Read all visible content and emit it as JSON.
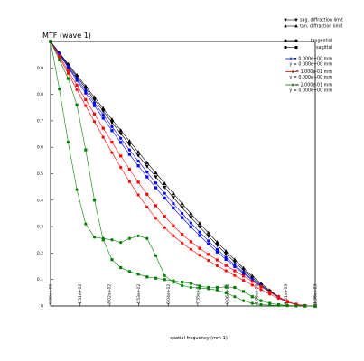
{
  "chart_data": {
    "type": "line",
    "title": "MTF (wave 1)",
    "xlabel": "spatial frequency (mm-1)",
    "ylabel": "",
    "xlim": [
      0,
      1358
    ],
    "ylim": [
      0,
      1
    ],
    "x_ticks": [
      {
        "value": 0,
        "label": "0.00e+00"
      },
      {
        "value": 151,
        "label": "1.51e+02"
      },
      {
        "value": 302,
        "label": "3.02e+02"
      },
      {
        "value": 453,
        "label": "4.53e+02"
      },
      {
        "value": 604,
        "label": "6.04e+02"
      },
      {
        "value": 755,
        "label": "7.55e+02"
      },
      {
        "value": 906,
        "label": "9.06e+02"
      },
      {
        "value": 1057,
        "label": "1.06e+03"
      },
      {
        "value": 1208,
        "label": "1.21e+03"
      },
      {
        "value": 1359,
        "label": "1.36e+03"
      }
    ],
    "y_ticks": [
      {
        "value": 0,
        "label": "0"
      },
      {
        "value": 0.1,
        "label": "0.1"
      },
      {
        "value": 0.2,
        "label": "0.2"
      },
      {
        "value": 0.3,
        "label": "0.3"
      },
      {
        "value": 0.4,
        "label": "0.4"
      },
      {
        "value": 0.5,
        "label": "0.5"
      },
      {
        "value": 0.6,
        "label": "0.6"
      },
      {
        "value": 0.7,
        "label": "0.7"
      },
      {
        "value": 0.8,
        "label": "0.8"
      },
      {
        "value": 0.9,
        "label": "0.9"
      },
      {
        "value": 1,
        "label": "1"
      }
    ],
    "grid": false,
    "legend_position": "top-right",
    "legend": {
      "limits": [
        {
          "label": "sag. diffraction limit",
          "marker": "tri-down"
        },
        {
          "label": "tan. diffraction limit",
          "marker": "tri-up"
        }
      ],
      "styles": [
        {
          "label": "tangential",
          "marker": "circle"
        },
        {
          "label": "sagittal",
          "marker": "square"
        }
      ],
      "fields": [
        {
          "color": "#0000ff",
          "line1": "x = 0.000e+00 mm",
          "line2": "y = 0.000e+00 mm"
        },
        {
          "color": "#ff0000",
          "line1": "x = 1.000e-01 mm",
          "line2": "y = 0.000e+00 mm"
        },
        {
          "color": "#008000",
          "line1": "x = 2.000e-01 mm",
          "line2": "y = 0.000e+00 mm"
        }
      ]
    },
    "x": [
      0,
      45,
      90,
      135,
      180,
      225,
      270,
      315,
      360,
      405,
      450,
      495,
      540,
      585,
      630,
      675,
      720,
      765,
      810,
      855,
      900,
      945,
      990,
      1035,
      1080,
      1125,
      1170,
      1215,
      1260,
      1305,
      1358
    ],
    "series": [
      {
        "kind": "limit",
        "marker": "tri-up",
        "color": "#000000",
        "values": [
          1.0,
          0.957,
          0.915,
          0.873,
          0.831,
          0.789,
          0.747,
          0.705,
          0.664,
          0.623,
          0.582,
          0.542,
          0.503,
          0.463,
          0.425,
          0.387,
          0.349,
          0.312,
          0.276,
          0.241,
          0.207,
          0.175,
          0.143,
          0.113,
          0.085,
          0.059,
          0.035,
          0.016,
          0.005,
          0.001,
          0.0
        ]
      },
      {
        "kind": "limit",
        "marker": "tri-down",
        "color": "#000000",
        "values": [
          1.0,
          0.955,
          0.911,
          0.867,
          0.823,
          0.78,
          0.737,
          0.694,
          0.652,
          0.61,
          0.569,
          0.528,
          0.488,
          0.449,
          0.41,
          0.372,
          0.335,
          0.299,
          0.264,
          0.23,
          0.197,
          0.166,
          0.136,
          0.107,
          0.08,
          0.056,
          0.034,
          0.016,
          0.006,
          0.001,
          0.0
        ]
      },
      {
        "kind": "field",
        "field": 0,
        "marker": "circle",
        "color": "#0000ff",
        "values": [
          1.0,
          0.953,
          0.906,
          0.86,
          0.814,
          0.768,
          0.723,
          0.678,
          0.634,
          0.59,
          0.548,
          0.506,
          0.465,
          0.426,
          0.387,
          0.35,
          0.314,
          0.279,
          0.246,
          0.214,
          0.184,
          0.155,
          0.127,
          0.101,
          0.076,
          0.053,
          0.033,
          0.016,
          0.006,
          0.001,
          0.0
        ]
      },
      {
        "kind": "field",
        "field": 0,
        "marker": "square",
        "color": "#0000ff",
        "values": [
          1.0,
          0.951,
          0.902,
          0.853,
          0.805,
          0.757,
          0.71,
          0.663,
          0.618,
          0.573,
          0.53,
          0.488,
          0.447,
          0.408,
          0.37,
          0.334,
          0.299,
          0.266,
          0.234,
          0.204,
          0.176,
          0.149,
          0.123,
          0.098,
          0.075,
          0.053,
          0.033,
          0.016,
          0.006,
          0.001,
          0.0
        ]
      },
      {
        "kind": "field",
        "field": 1,
        "marker": "circle",
        "color": "#ff0000",
        "values": [
          1.0,
          0.94,
          0.879,
          0.818,
          0.757,
          0.697,
          0.638,
          0.58,
          0.524,
          0.47,
          0.42,
          0.374,
          0.332,
          0.296,
          0.265,
          0.238,
          0.214,
          0.192,
          0.172,
          0.152,
          0.133,
          0.115,
          0.097,
          0.079,
          0.062,
          0.045,
          0.029,
          0.015,
          0.005,
          0.001,
          0.0
        ]
      },
      {
        "kind": "field",
        "field": 1,
        "marker": "square",
        "color": "#ff0000",
        "values": [
          1.0,
          0.945,
          0.89,
          0.835,
          0.78,
          0.726,
          0.672,
          0.619,
          0.567,
          0.517,
          0.468,
          0.422,
          0.379,
          0.339,
          0.303,
          0.271,
          0.243,
          0.218,
          0.195,
          0.174,
          0.153,
          0.133,
          0.113,
          0.093,
          0.073,
          0.053,
          0.034,
          0.017,
          0.006,
          0.001,
          0.0
        ]
      },
      {
        "kind": "field",
        "field": 2,
        "marker": "circle",
        "color": "#008000",
        "values": [
          1.0,
          0.82,
          0.62,
          0.44,
          0.31,
          0.26,
          0.255,
          0.25,
          0.24,
          0.255,
          0.265,
          0.255,
          0.19,
          0.115,
          0.09,
          0.077,
          0.07,
          0.068,
          0.065,
          0.06,
          0.05,
          0.035,
          0.02,
          0.01,
          0.005,
          0.003,
          0.002,
          0.001,
          0.0,
          0.0,
          0.0
        ]
      },
      {
        "kind": "field",
        "field": 2,
        "marker": "square",
        "color": "#008000",
        "values": [
          1.0,
          0.93,
          0.86,
          0.76,
          0.59,
          0.4,
          0.25,
          0.175,
          0.145,
          0.13,
          0.12,
          0.11,
          0.105,
          0.1,
          0.095,
          0.09,
          0.085,
          0.075,
          0.07,
          0.07,
          0.072,
          0.07,
          0.055,
          0.035,
          0.02,
          0.01,
          0.005,
          0.002,
          0.001,
          0.0,
          0.0
        ]
      }
    ]
  }
}
